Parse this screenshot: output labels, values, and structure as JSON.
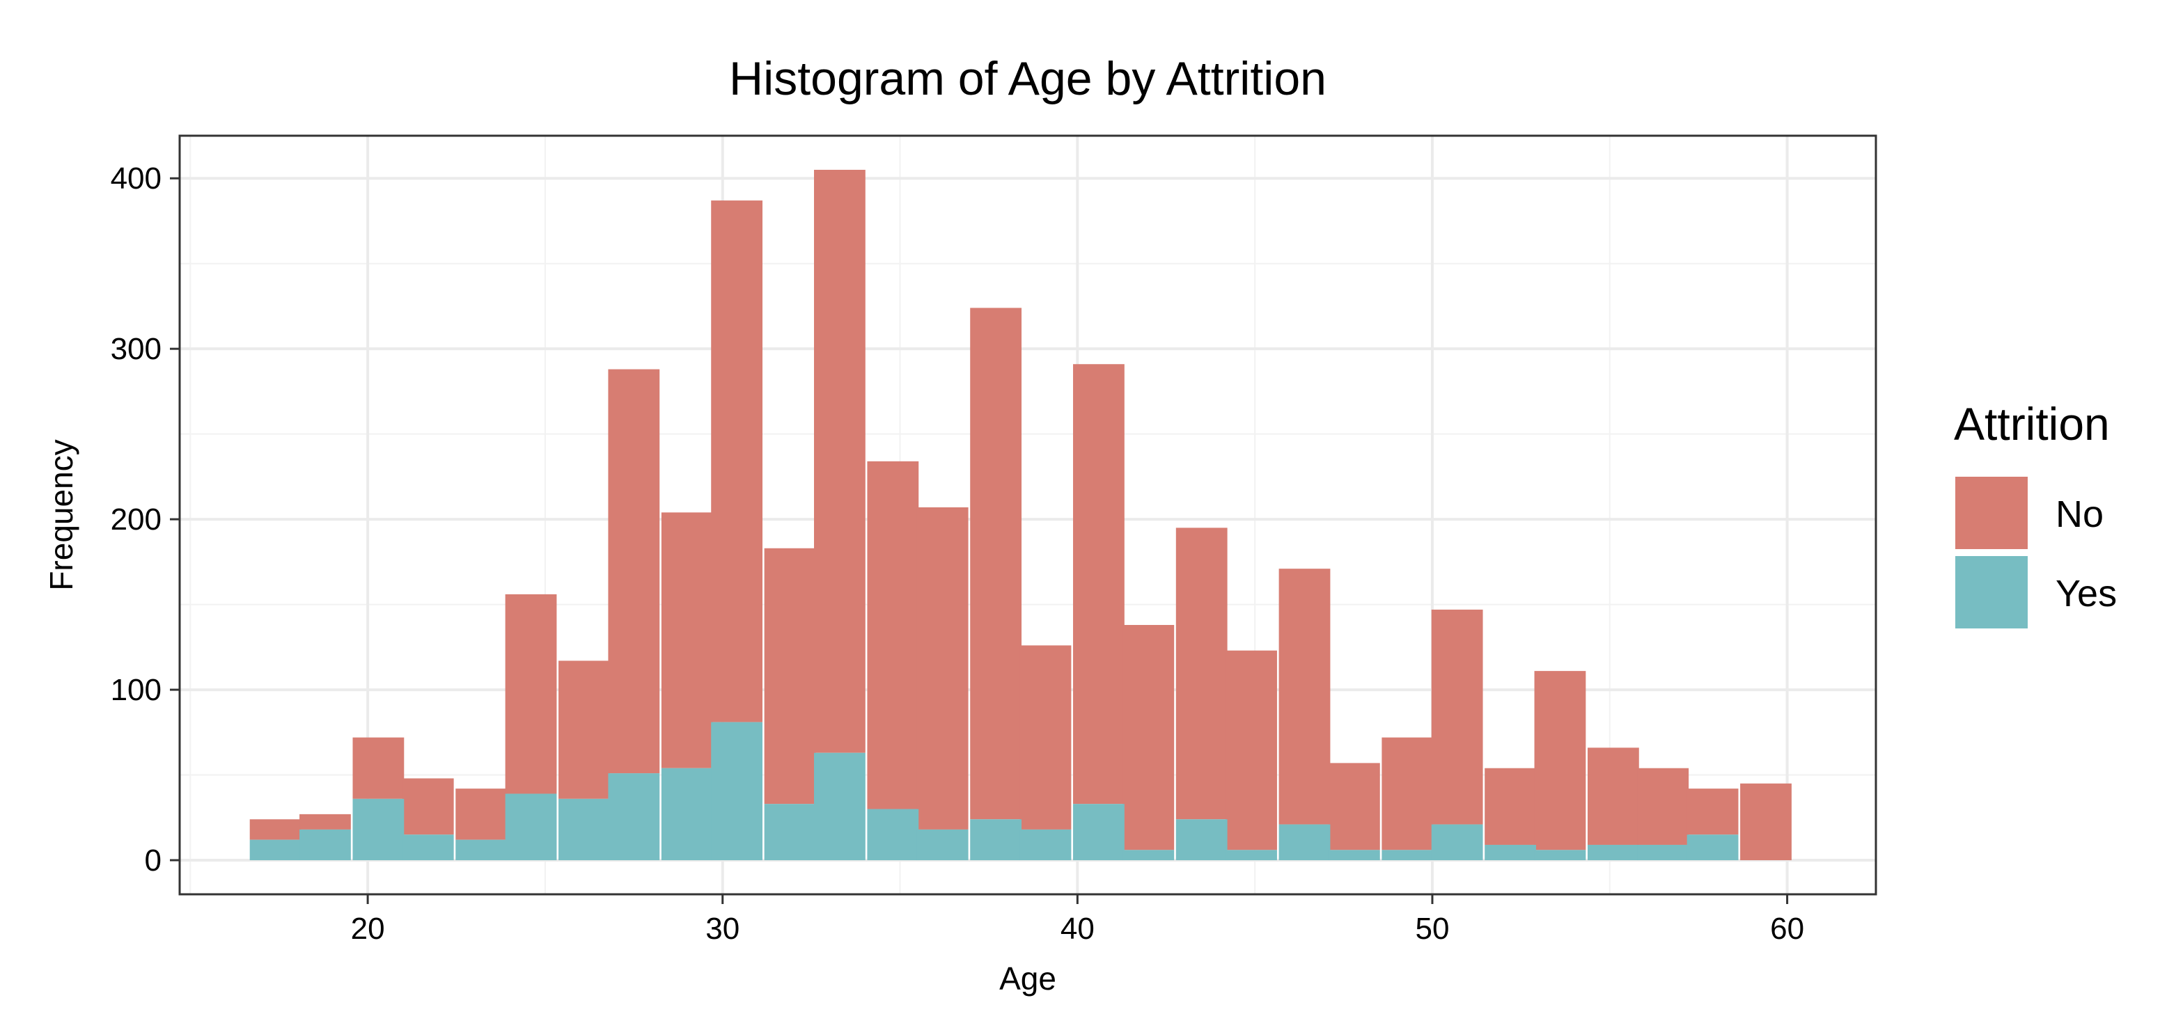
{
  "chart_data": {
    "type": "bar",
    "title": "Histogram of Age by Attrition",
    "xlabel": "Age",
    "ylabel": "Frequency",
    "xlim": [
      14.7,
      62.5
    ],
    "ylim": [
      -20,
      425
    ],
    "x_ticks": [
      20,
      30,
      40,
      50,
      60
    ],
    "y_ticks": [
      0,
      100,
      200,
      300,
      400
    ],
    "grid": true,
    "stacked": true,
    "bin_width": 1.448,
    "x": [
      17.4,
      18.8,
      20.3,
      21.7,
      23.2,
      24.6,
      26.1,
      27.5,
      29.0,
      30.4,
      31.9,
      33.3,
      34.8,
      36.2,
      37.7,
      39.1,
      40.6,
      42.0,
      43.5,
      44.9,
      46.4,
      47.8,
      49.3,
      50.7,
      52.2,
      53.6,
      55.1,
      56.5,
      57.9,
      59.4
    ],
    "series": [
      {
        "name": "No",
        "color": "#D77D72",
        "values": [
          12,
          9,
          36,
          33,
          30,
          117,
          81,
          237,
          150,
          306,
          150,
          342,
          204,
          189,
          300,
          108,
          258,
          132,
          171,
          117,
          150,
          51,
          66,
          126,
          45,
          105,
          57,
          45,
          27,
          45
        ]
      },
      {
        "name": "Yes",
        "color": "#77BDC2",
        "values": [
          12,
          18,
          36,
          15,
          12,
          39,
          36,
          51,
          54,
          81,
          33,
          63,
          30,
          18,
          24,
          18,
          33,
          6,
          24,
          6,
          21,
          6,
          6,
          21,
          9,
          6,
          9,
          9,
          15,
          0
        ]
      }
    ],
    "legend": {
      "title": "Attrition",
      "placement": "right",
      "entries": [
        "No",
        "Yes"
      ]
    }
  }
}
